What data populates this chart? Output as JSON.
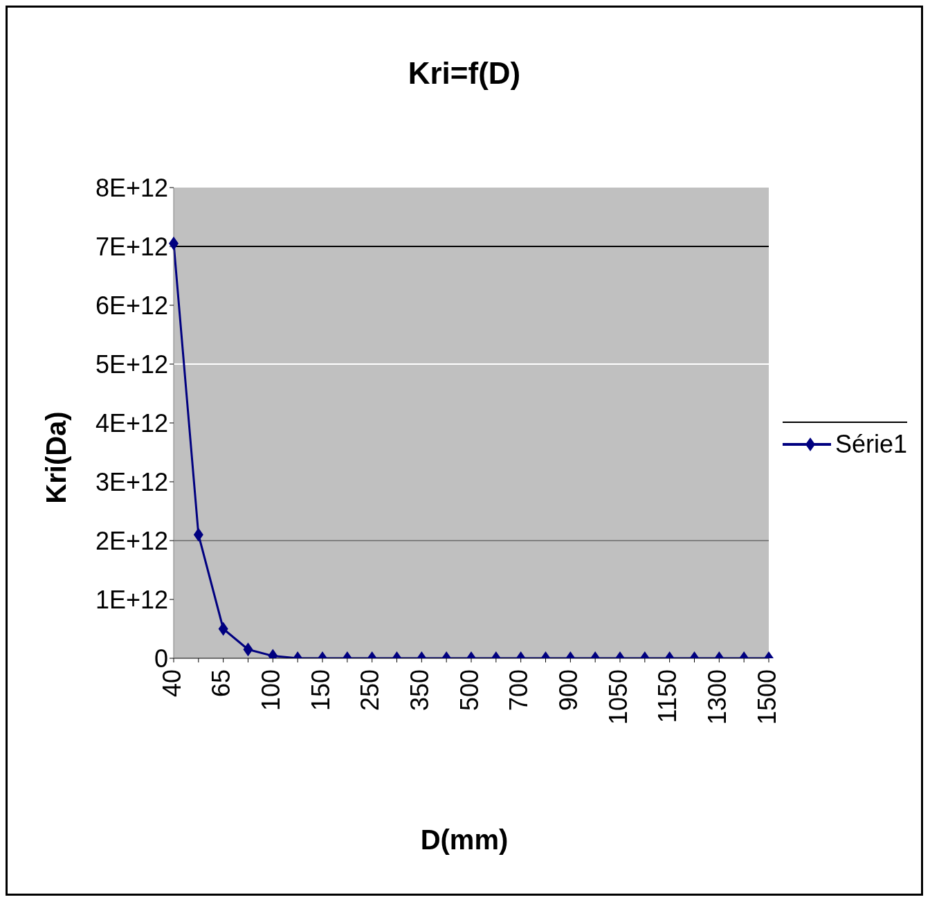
{
  "chart_data": {
    "type": "line",
    "title": "Kri=f(D)",
    "xlabel": "D(mm)",
    "ylabel": "Kri(Da)",
    "categories": [
      "40",
      null,
      "65",
      null,
      "100",
      null,
      "150",
      null,
      "250",
      null,
      "350",
      null,
      "500",
      null,
      "700",
      null,
      "900",
      null,
      "1050",
      null,
      "1150",
      null,
      "1300",
      null,
      "1500"
    ],
    "series": [
      {
        "name": "Série1",
        "color": "#000080",
        "values": [
          7050000000000.0,
          2100000000000.0,
          500000000000.0,
          150000000000.0,
          40000000000.0,
          0,
          0,
          0,
          0,
          0,
          0,
          0,
          0,
          0,
          0,
          0,
          0,
          0,
          0,
          0,
          0,
          0,
          0,
          0,
          0
        ]
      }
    ],
    "ylim": [
      0,
      8000000000000.0
    ],
    "yticks": [
      {
        "value": 0,
        "label": "0"
      },
      {
        "value": 1000000000000.0,
        "label": "1E+12"
      },
      {
        "value": 2000000000000.0,
        "label": "2E+12"
      },
      {
        "value": 3000000000000.0,
        "label": "3E+12"
      },
      {
        "value": 4000000000000.0,
        "label": "4E+12"
      },
      {
        "value": 5000000000000.0,
        "label": "5E+12"
      },
      {
        "value": 6000000000000.0,
        "label": "6E+12"
      },
      {
        "value": 7000000000000.0,
        "label": "7E+12"
      },
      {
        "value": 8000000000000.0,
        "label": "8E+12"
      }
    ],
    "ref_lines": [
      {
        "axis": "y",
        "value": 2000000000000.0,
        "color": "#808080"
      },
      {
        "axis": "y",
        "value": 5000000000000.0,
        "color": "#ffffff"
      },
      {
        "axis": "y",
        "value": 7000000000000.0,
        "color": "#000000"
      }
    ],
    "legend": "right",
    "marker": "diamond",
    "line_style": "solid"
  }
}
